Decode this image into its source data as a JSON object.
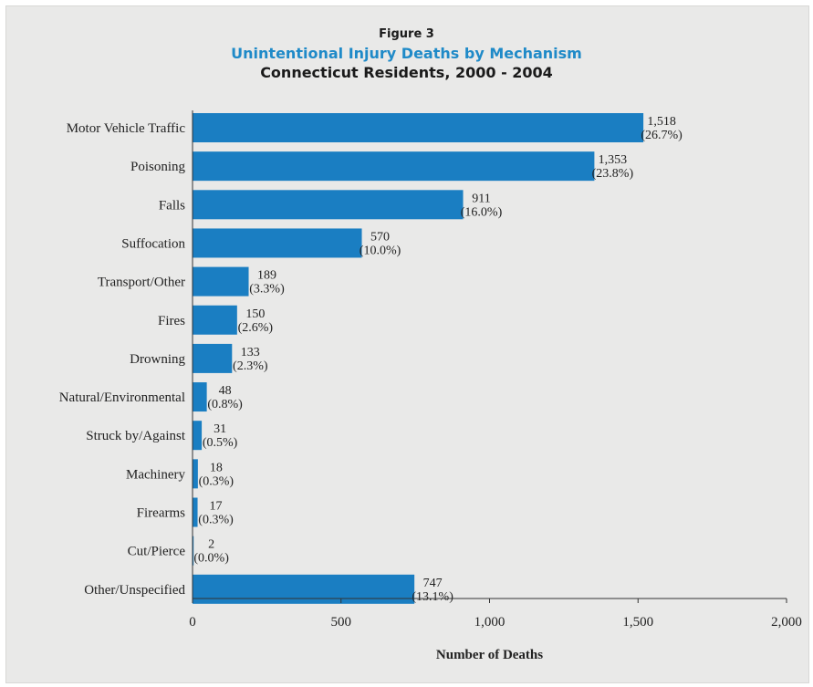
{
  "figure": {
    "number": "Figure 3",
    "title": "Unintentional Injury Deaths by Mechanism",
    "subtitle": "Connecticut Residents, 2000 - 2004"
  },
  "colors": {
    "bar": "#1a7ec2",
    "background": "#e9e9e8",
    "axis": "#333333"
  },
  "chart_data": {
    "type": "bar",
    "orientation": "horizontal",
    "title": "Unintentional Injury Deaths by Mechanism",
    "subtitle": "Connecticut Residents, 2000 - 2004",
    "xlabel": "Number of Deaths",
    "ylabel": "",
    "xlim": [
      0,
      2000
    ],
    "xticks": [
      "0",
      "500",
      "1,000",
      "1,500",
      "2,000"
    ],
    "grid": false,
    "categories": [
      "Motor Vehicle Traffic",
      "Poisoning",
      "Falls",
      "Suffocation",
      "Transport/Other",
      "Fires",
      "Drowning",
      "Natural/Environmental",
      "Struck by/Against",
      "Machinery",
      "Firearms",
      "Cut/Pierce",
      "Other/Unspecified"
    ],
    "values": [
      1518,
      1353,
      911,
      570,
      189,
      150,
      133,
      48,
      31,
      18,
      17,
      2,
      747
    ],
    "value_labels": [
      "1,518",
      "1,353",
      "911",
      "570",
      "189",
      "150",
      "133",
      "48",
      "31",
      "18",
      "17",
      "2",
      "747"
    ],
    "percent_labels": [
      "(26.7%)",
      "(23.8%)",
      "(16.0%)",
      "(10.0%)",
      "(3.3%)",
      "(2.6%)",
      "(2.3%)",
      "(0.8%)",
      "(0.5%)",
      "(0.3%)",
      "(0.3%)",
      "(0.0%)",
      "(13.1%)"
    ]
  }
}
